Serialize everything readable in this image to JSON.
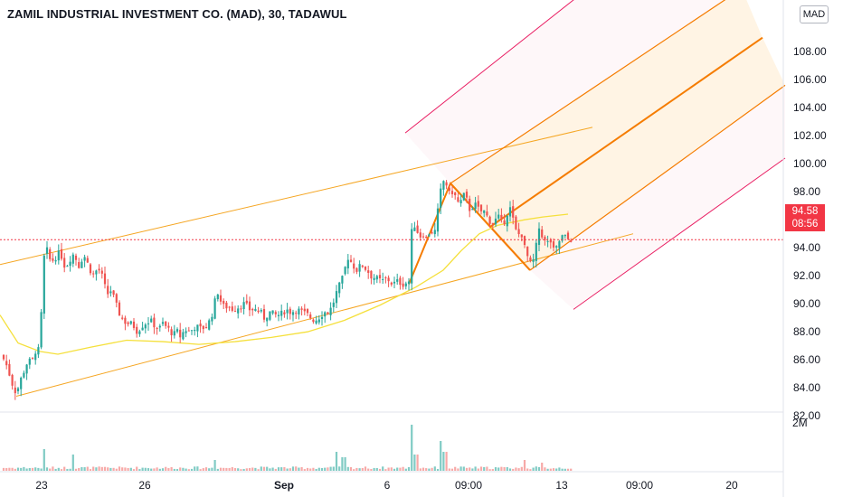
{
  "header": {
    "title": "ZAMIL INDUSTRIAL INVESTMENT CO. (MAD), 30, TADAWUL",
    "currency_badge": "MAD"
  },
  "last_price": {
    "value": "94.58",
    "countdown": "08:56",
    "color": "#f23645"
  },
  "volume_scale_label": "2M",
  "colors": {
    "up": "#26a69a",
    "down": "#ef5350",
    "pitchfork": "#f57c00",
    "outer": "#e91e63",
    "ma": "#f5e03c",
    "channel": "#f5a623"
  },
  "chart_data": {
    "type": "candlestick",
    "title": "ZAMIL INDUSTRIAL INVESTMENT CO. (MAD), 30, TADAWUL",
    "ylim": [
      80.5,
      109
    ],
    "y_ticks": [
      "82.00",
      "84.00",
      "86.00",
      "88.00",
      "90.00",
      "92.00",
      "94.00",
      "96.00",
      "98.00",
      "100.00",
      "102.00",
      "104.00",
      "106.00",
      "108.00"
    ],
    "x_ticks": [
      "23",
      "26",
      "Sep",
      "6",
      "09:00",
      "13",
      "09:00",
      "20"
    ],
    "grid": false,
    "close_path": [
      [
        0,
        86.6
      ],
      [
        8,
        85.5
      ],
      [
        14,
        84.2
      ],
      [
        18,
        83.6
      ],
      [
        24,
        84.8
      ],
      [
        30,
        85.8
      ],
      [
        36,
        86.0
      ],
      [
        40,
        86.8
      ],
      [
        44,
        86.6
      ],
      [
        48,
        93.2
      ],
      [
        52,
        93.8
      ],
      [
        56,
        93.0
      ],
      [
        60,
        93.2
      ],
      [
        64,
        93.6
      ],
      [
        68,
        93.4
      ],
      [
        72,
        92.6
      ],
      [
        76,
        93.0
      ],
      [
        80,
        93.6
      ],
      [
        84,
        93.2
      ],
      [
        88,
        92.6
      ],
      [
        92,
        93.6
      ],
      [
        96,
        93.0
      ],
      [
        100,
        92.4
      ],
      [
        104,
        92.0
      ],
      [
        108,
        92.6
      ],
      [
        114,
        91.8
      ],
      [
        118,
        90.6
      ],
      [
        122,
        91.0
      ],
      [
        126,
        90.4
      ],
      [
        130,
        89.6
      ],
      [
        134,
        89.0
      ],
      [
        140,
        88.6
      ],
      [
        144,
        88.6
      ],
      [
        148,
        88.4
      ],
      [
        152,
        88.0
      ],
      [
        156,
        88.4
      ],
      [
        160,
        88.6
      ],
      [
        166,
        88.8
      ],
      [
        172,
        88.4
      ],
      [
        176,
        88.2
      ],
      [
        180,
        88.6
      ],
      [
        186,
        88.2
      ],
      [
        192,
        87.8
      ],
      [
        196,
        88.0
      ],
      [
        200,
        87.6
      ],
      [
        204,
        88.2
      ],
      [
        210,
        88.0
      ],
      [
        216,
        88.4
      ],
      [
        222,
        88.2
      ],
      [
        228,
        88.4
      ],
      [
        232,
        88.8
      ],
      [
        236,
        89.6
      ],
      [
        240,
        91.0
      ],
      [
        246,
        89.8
      ],
      [
        252,
        89.8
      ],
      [
        258,
        89.6
      ],
      [
        264,
        89.8
      ],
      [
        270,
        90.0
      ],
      [
        276,
        89.6
      ],
      [
        282,
        89.6
      ],
      [
        288,
        89.4
      ],
      [
        292,
        89.0
      ],
      [
        298,
        89.4
      ],
      [
        304,
        89.2
      ],
      [
        310,
        89.2
      ],
      [
        316,
        89.6
      ],
      [
        322,
        89.4
      ],
      [
        328,
        89.6
      ],
      [
        334,
        89.4
      ],
      [
        340,
        89.2
      ],
      [
        344,
        89.0
      ],
      [
        348,
        88.8
      ],
      [
        352,
        89.0
      ],
      [
        358,
        89.4
      ],
      [
        364,
        89.4
      ],
      [
        368,
        90.0
      ],
      [
        372,
        90.8
      ],
      [
        376,
        91.4
      ],
      [
        380,
        92.0
      ],
      [
        384,
        93.4
      ],
      [
        388,
        93.0
      ],
      [
        394,
        92.4
      ],
      [
        400,
        92.8
      ],
      [
        406,
        92.4
      ],
      [
        410,
        92.0
      ],
      [
        416,
        91.8
      ],
      [
        422,
        91.6
      ],
      [
        428,
        91.8
      ],
      [
        434,
        91.4
      ],
      [
        440,
        91.6
      ],
      [
        446,
        91.4
      ],
      [
        452,
        91.6
      ],
      [
        456,
        96.0
      ],
      [
        460,
        95.4
      ],
      [
        464,
        94.8
      ],
      [
        468,
        95.0
      ],
      [
        472,
        94.6
      ],
      [
        476,
        95.4
      ],
      [
        480,
        94.8
      ],
      [
        484,
        96.6
      ],
      [
        488,
        98.4
      ],
      [
        492,
        99.0
      ],
      [
        496,
        97.8
      ],
      [
        500,
        98.0
      ],
      [
        504,
        97.6
      ],
      [
        508,
        97.0
      ],
      [
        512,
        97.8
      ],
      [
        516,
        97.4
      ],
      [
        520,
        96.6
      ],
      [
        524,
        97.2
      ],
      [
        528,
        96.8
      ],
      [
        532,
        96.6
      ],
      [
        536,
        96.6
      ],
      [
        540,
        96.0
      ],
      [
        544,
        95.8
      ],
      [
        548,
        96.0
      ],
      [
        552,
        96.2
      ],
      [
        556,
        95.6
      ],
      [
        560,
        96.4
      ],
      [
        564,
        96.8
      ],
      [
        568,
        95.8
      ],
      [
        572,
        94.8
      ],
      [
        576,
        95.2
      ],
      [
        580,
        94.0
      ],
      [
        584,
        93.2
      ],
      [
        588,
        92.6
      ],
      [
        592,
        93.8
      ],
      [
        596,
        95.4
      ],
      [
        600,
        94.8
      ],
      [
        604,
        94.2
      ],
      [
        608,
        94.6
      ],
      [
        612,
        93.8
      ],
      [
        616,
        94.0
      ],
      [
        620,
        94.8
      ],
      [
        624,
        94.8
      ],
      [
        628,
        94.6
      ],
      [
        632,
        94.6
      ]
    ],
    "volume_hint": [
      [
        48,
        0.4
      ],
      [
        82,
        0.3
      ],
      [
        238,
        0.2
      ],
      [
        372,
        0.35
      ],
      [
        380,
        0.25
      ],
      [
        456,
        0.85
      ],
      [
        460,
        0.3
      ],
      [
        488,
        0.55
      ],
      [
        492,
        0.35
      ],
      [
        580,
        0.2
      ],
      [
        600,
        0.15
      ]
    ],
    "overlays": {
      "ma_line": [
        [
          0,
          89.2
        ],
        [
          20,
          87.2
        ],
        [
          44,
          86.6
        ],
        [
          64,
          86.4
        ],
        [
          100,
          86.9
        ],
        [
          140,
          87.4
        ],
        [
          180,
          87.3
        ],
        [
          220,
          87.1
        ],
        [
          260,
          87.3
        ],
        [
          300,
          87.6
        ],
        [
          340,
          88.0
        ],
        [
          380,
          88.8
        ],
        [
          420,
          89.9
        ],
        [
          460,
          91.2
        ],
        [
          490,
          92.4
        ],
        [
          510,
          93.8
        ],
        [
          530,
          95.0
        ],
        [
          550,
          95.6
        ],
        [
          580,
          96.0
        ],
        [
          600,
          96.2
        ],
        [
          628,
          96.4
        ]
      ],
      "lower_channel": [
        [
          18,
          83.4
        ],
        [
          700,
          95.0
        ]
      ],
      "upper_channel": [
        [
          0,
          92.8
        ],
        [
          655,
          102.6
        ]
      ],
      "pitchfork_pivots": [
        [
          452,
          91.4
        ],
        [
          498,
          98.6
        ],
        [
          586,
          92.4
        ]
      ],
      "pitchfork_median": [
        [
          542,
          95.5
        ],
        [
          843,
          109.0
        ]
      ],
      "pitchfork_upper": [
        [
          498,
          98.6
        ],
        [
          820,
          112.5
        ]
      ],
      "pitchfork_lower": [
        [
          586,
          92.4
        ],
        [
          868,
          105.6
        ]
      ],
      "outer_upper": [
        [
          448,
          102.2
        ],
        [
          640,
          112.0
        ]
      ],
      "outer_lower": [
        [
          634,
          89.6
        ],
        [
          868,
          100.4
        ]
      ],
      "last_price_line": 94.58
    }
  }
}
